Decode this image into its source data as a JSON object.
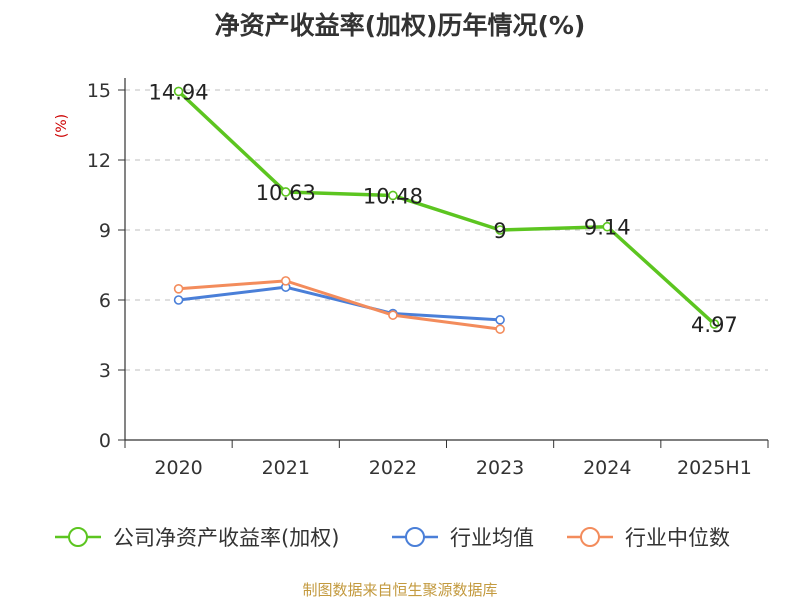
{
  "chart_data": {
    "type": "line",
    "title": "净资产收益率(加权)历年情况(%)",
    "ylabel": "(%)",
    "categories": [
      "2020",
      "2021",
      "2022",
      "2023",
      "2024",
      "2025H1"
    ],
    "yticks": [
      "0",
      "3",
      "6",
      "9",
      "12",
      "15"
    ],
    "ylim": [
      0,
      15
    ],
    "grid": true,
    "legend_position": "bottom",
    "series": [
      {
        "name": "公司净资产收益率(加权)",
        "color": "#5cc520",
        "values": [
          14.94,
          10.63,
          10.48,
          9,
          9.14,
          4.97
        ],
        "labels": [
          "14.94",
          "10.63",
          "10.48",
          "9",
          "9.14",
          "4.97"
        ]
      },
      {
        "name": "行业均值",
        "color": "#4a7fd8",
        "values": [
          6.0,
          6.55,
          5.42,
          5.15,
          null,
          null
        ]
      },
      {
        "name": "行业中位数",
        "color": "#f38c5c",
        "values": [
          6.48,
          6.82,
          5.35,
          4.75,
          null,
          null
        ]
      }
    ]
  },
  "source": "制图数据来自恒生聚源数据库"
}
